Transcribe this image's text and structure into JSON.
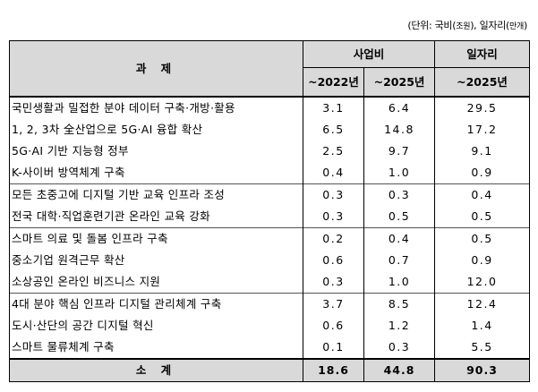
{
  "unit_note": {
    "prefix": "(단위: 국비(",
    "unit1": "조원",
    "middle": "), 일자리(",
    "unit2": "만개",
    "suffix": ")"
  },
  "table": {
    "header": {
      "task": "과 제",
      "budget": "사업비",
      "jobs": "일자리",
      "col_2022": "~2022년",
      "col_2025": "~2025년",
      "col_jobs_2025": "~2025년"
    },
    "rows": [
      {
        "task": "국민생활과 밀접한 분야 데이터 구축·개방·활용",
        "b2022": "3.1",
        "b2025": "6.4",
        "jobs": "29.5",
        "group_start": true
      },
      {
        "task": "1, 2, 3차 全산업으로 5G·AI 융합 확산",
        "b2022": "6.5",
        "b2025": "14.8",
        "jobs": "17.2",
        "group_start": false
      },
      {
        "task": "5G·AI 기반 지능형 정부",
        "b2022": "2.5",
        "b2025": "9.7",
        "jobs": "9.1",
        "group_start": false
      },
      {
        "task": "K-사이버 방역체계 구축",
        "b2022": "0.4",
        "b2025": "1.0",
        "jobs": "0.9",
        "group_start": false
      },
      {
        "task": "모든 초중고에 디지털 기반 교육 인프라 조성",
        "b2022": "0.3",
        "b2025": "0.3",
        "jobs": "0.4",
        "group_start": true
      },
      {
        "task": "전국 대학·직업훈련기관 온라인 교육 강화",
        "b2022": "0.3",
        "b2025": "0.5",
        "jobs": "0.5",
        "group_start": false
      },
      {
        "task": "스마트 의료 및 돌봄 인프라 구축",
        "b2022": "0.2",
        "b2025": "0.4",
        "jobs": "0.5",
        "group_start": true
      },
      {
        "task": "중소기업 원격근무 확산",
        "b2022": "0.6",
        "b2025": "0.7",
        "jobs": "0.9",
        "group_start": false
      },
      {
        "task": "소상공인 온라인 비즈니스 지원",
        "b2022": "0.3",
        "b2025": "1.0",
        "jobs": "12.0",
        "group_start": false
      },
      {
        "task": "4대 분야 핵심 인프라 디지털 관리체계 구축",
        "b2022": "3.7",
        "b2025": "8.5",
        "jobs": "12.4",
        "group_start": true
      },
      {
        "task": "도시·산단의 공간 디지털 혁신",
        "b2022": "0.6",
        "b2025": "1.2",
        "jobs": "1.4",
        "group_start": false
      },
      {
        "task": "스마트 물류체계 구축",
        "b2022": "0.1",
        "b2025": "0.3",
        "jobs": "5.5",
        "group_start": false
      }
    ],
    "total": {
      "label": "소 계",
      "b2022": "18.6",
      "b2025": "44.8",
      "jobs": "90.3"
    }
  }
}
